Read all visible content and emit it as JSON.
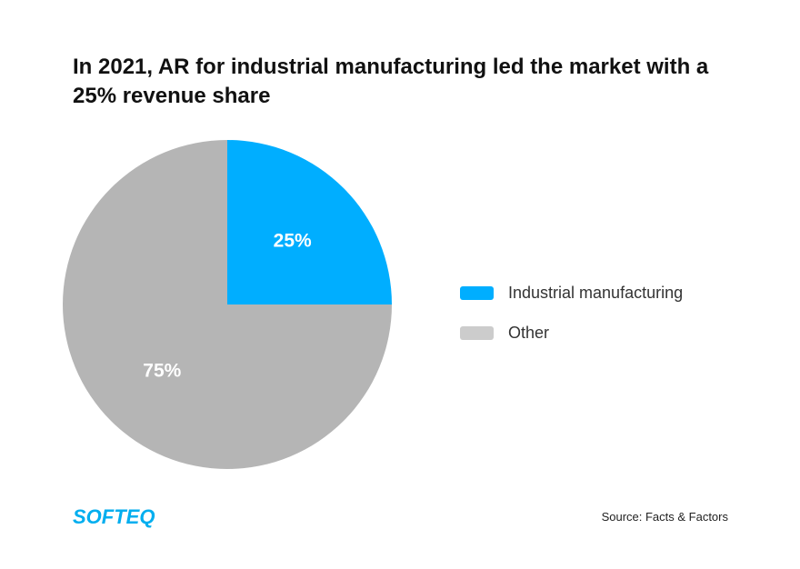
{
  "chart_data": {
    "type": "pie",
    "title": "In 2021, AR for industrial manufacturing led the market with a 25% revenue share",
    "slices": [
      {
        "name": "Industrial manufacturing",
        "value": 25,
        "label": "25%",
        "color": "#00AEFF",
        "legend_color": "#00AEFF"
      },
      {
        "name": "Other",
        "value": 75,
        "label": "75%",
        "color": "#B5B5B5",
        "legend_color": "#CCCCCC"
      }
    ],
    "legend_position": "right"
  },
  "footer": {
    "logo": "SOFTEQ",
    "source": "Source: Facts & Factors"
  }
}
